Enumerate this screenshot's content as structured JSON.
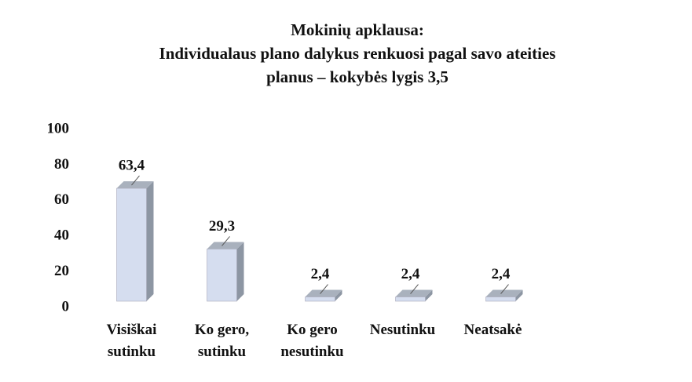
{
  "chart_data": {
    "type": "bar3d",
    "title": "Mokinių apklausa:\nIndividualaus plano dalykus renkuosi pagal savo ateities\nplanus  – kokybės lygis 3,5",
    "categories": [
      "Visiškai\nsutinku",
      "Ko gero,\nsutinku",
      "Ko gero\nnesutinku",
      "Nesutinku",
      "Neatsakė"
    ],
    "values": [
      63.4,
      29.3,
      2.4,
      2.4,
      2.4
    ],
    "value_labels": [
      "63,4",
      "29,3",
      "2,4",
      "2,4",
      "2,4"
    ],
    "color": "#d5ddef",
    "ylim": [
      0,
      100
    ],
    "yticks": [
      0,
      20,
      40,
      60,
      80,
      100
    ],
    "grid": false
  }
}
